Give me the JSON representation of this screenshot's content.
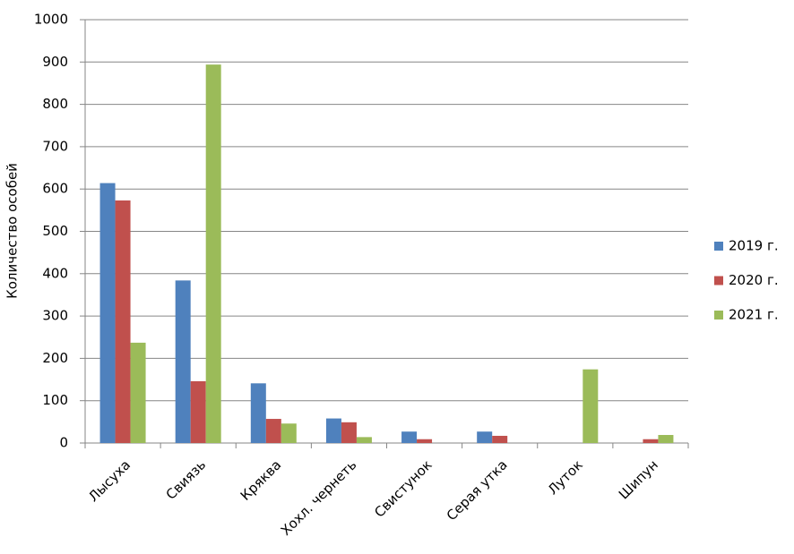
{
  "chart_data": {
    "type": "bar",
    "y_label": "Количество особей",
    "categories": [
      "Лысуха",
      "Свиязь",
      "Кряква",
      "Хохл. чернеть",
      "Свистунок",
      "Серая утка",
      "Луток",
      "Шипун"
    ],
    "series": [
      {
        "name": "2019 г.",
        "color": "#4f81bd",
        "values": [
          614,
          384,
          141,
          58,
          27,
          27,
          0,
          0
        ]
      },
      {
        "name": "2020 г.",
        "color": "#c0504d",
        "values": [
          573,
          146,
          57,
          49,
          9,
          17,
          0,
          9
        ]
      },
      {
        "name": "2021 г.",
        "color": "#9bbb59",
        "values": [
          237,
          894,
          46,
          14,
          0,
          0,
          174,
          19
        ]
      }
    ],
    "ylim": [
      0,
      1000
    ],
    "yticks": [
      0,
      100,
      200,
      300,
      400,
      500,
      600,
      700,
      800,
      900,
      1000
    ],
    "grid": true,
    "legend": "right"
  }
}
